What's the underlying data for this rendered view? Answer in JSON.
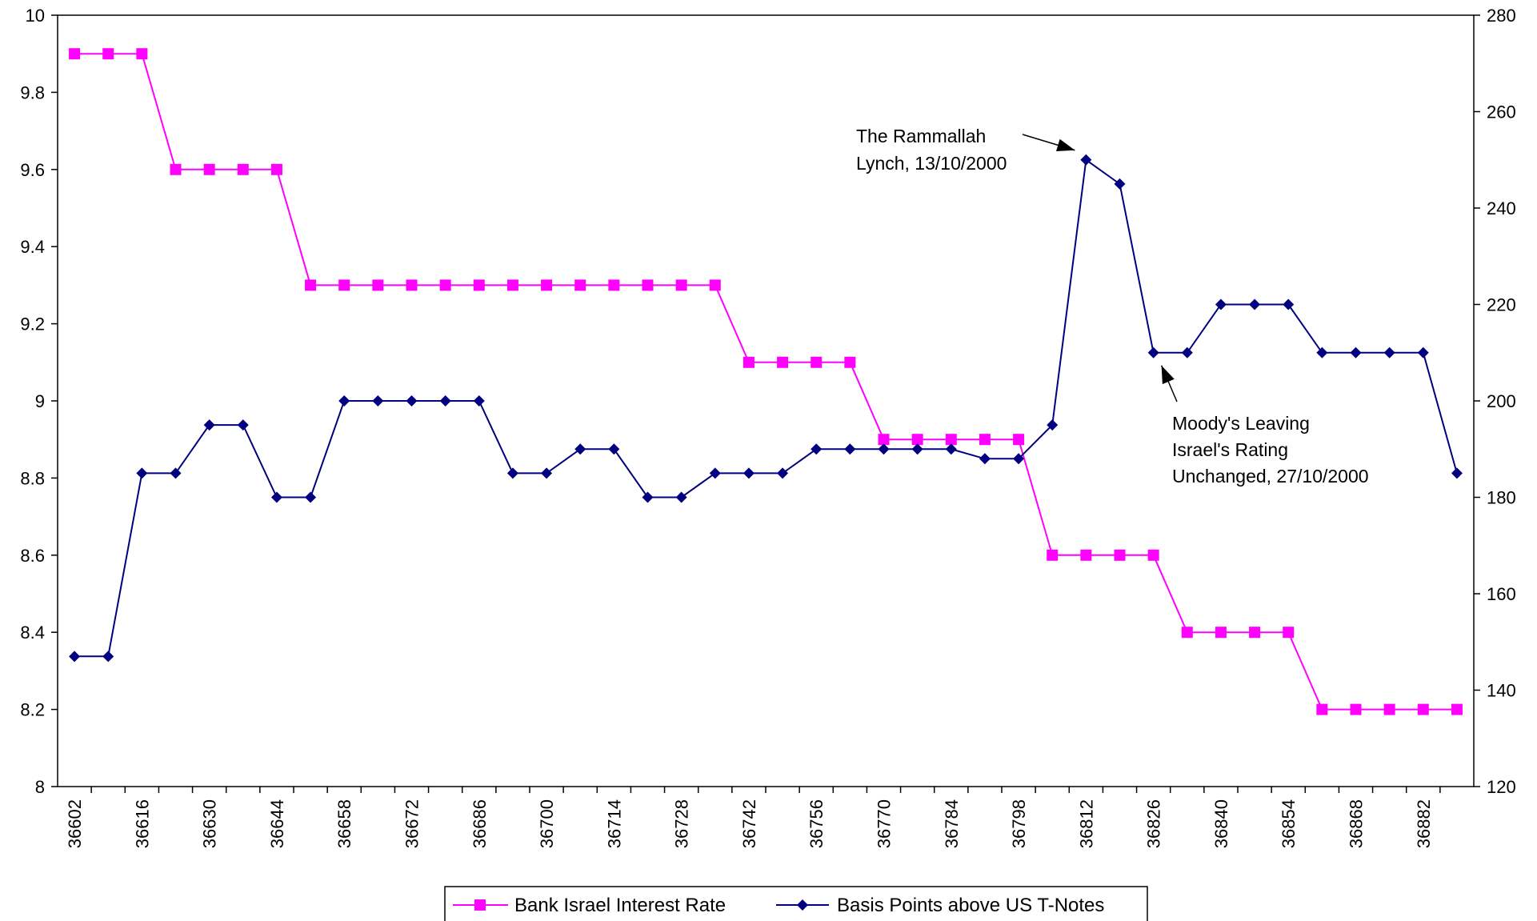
{
  "chart_data": {
    "type": "line",
    "x": [
      36602,
      36609,
      36616,
      36623,
      36630,
      36637,
      36644,
      36651,
      36658,
      36665,
      36672,
      36679,
      36686,
      36693,
      36700,
      36707,
      36714,
      36721,
      36728,
      36735,
      36742,
      36749,
      36756,
      36763,
      36770,
      36777,
      36784,
      36791,
      36798,
      36805,
      36812,
      36819,
      36826,
      36833,
      36840,
      36847,
      36854,
      36861,
      36868,
      36875,
      36882,
      36889
    ],
    "x_tick_labels": [
      "36602",
      "36616",
      "36630",
      "36644",
      "36658",
      "36672",
      "36686",
      "36700",
      "36714",
      "36728",
      "36742",
      "36756",
      "36770",
      "36784",
      "36798",
      "36812",
      "36826",
      "36840",
      "36854",
      "36868",
      "36882"
    ],
    "series": [
      {
        "name": "Bank Israel Interest Rate",
        "axis": "left",
        "color": "#FF00FF",
        "marker": "square",
        "values": [
          9.9,
          9.9,
          9.9,
          9.6,
          9.6,
          9.6,
          9.6,
          9.3,
          9.3,
          9.3,
          9.3,
          9.3,
          9.3,
          9.3,
          9.3,
          9.3,
          9.3,
          9.3,
          9.3,
          9.3,
          9.1,
          9.1,
          9.1,
          9.1,
          8.9,
          8.9,
          8.9,
          8.9,
          8.9,
          8.6,
          8.6,
          8.6,
          8.6,
          8.4,
          8.4,
          8.4,
          8.4,
          8.2,
          8.2,
          8.2,
          8.2,
          8.2
        ]
      },
      {
        "name": "Basis Points above US T-Notes",
        "axis": "right",
        "color": "#000080",
        "marker": "diamond",
        "values": [
          147,
          147,
          185,
          185,
          195,
          195,
          180,
          180,
          200,
          200,
          200,
          200,
          200,
          185,
          185,
          190,
          190,
          180,
          180,
          185,
          185,
          185,
          190,
          190,
          190,
          190,
          190,
          188,
          188,
          195,
          250,
          245,
          210,
          210,
          220,
          220,
          220,
          210,
          210,
          210,
          210,
          185
        ]
      }
    ],
    "y_left": {
      "lim": [
        8,
        10
      ],
      "ticks": [
        "8",
        "8.2",
        "8.4",
        "8.6",
        "8.8",
        "9",
        "9.2",
        "9.4",
        "9.6",
        "9.8",
        "10"
      ]
    },
    "y_right": {
      "lim": [
        120,
        280
      ],
      "ticks": [
        "120",
        "140",
        "160",
        "180",
        "200",
        "220",
        "240",
        "260",
        "280"
      ]
    },
    "annotations": [
      {
        "lines": [
          "The Rammallah",
          "Lynch, 13/10/2000"
        ],
        "target_x": 36812,
        "target_y": 250
      },
      {
        "lines": [
          "Moody's Leaving",
          "Israel's Rating",
          "Unchanged, 27/10/2000"
        ],
        "target_x": 36826,
        "target_y": 210
      }
    ],
    "legend_position": "bottom",
    "grid": false
  }
}
